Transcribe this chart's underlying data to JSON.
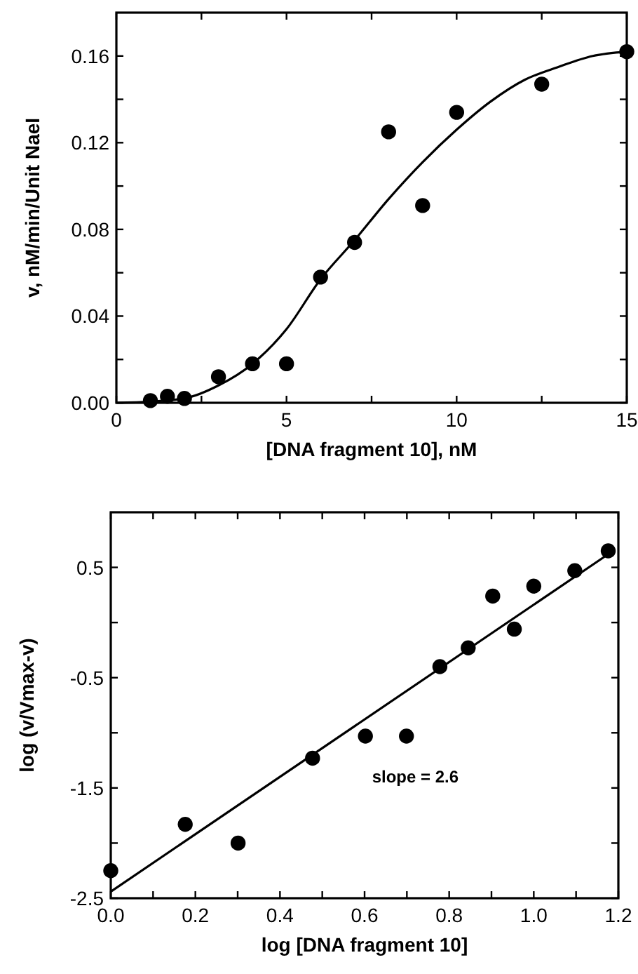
{
  "chart_data": [
    {
      "type": "scatter",
      "xlabel": "[DNA fragment 10], nM",
      "ylabel": "v, nM/min/Unit NaeI",
      "xlim": [
        0,
        15
      ],
      "ylim": [
        0,
        0.18
      ],
      "xticks": [
        0,
        {
          "value": 2.5,
          "label": null
        },
        5,
        {
          "value": 7.5,
          "label": null
        },
        10,
        {
          "value": 12.5,
          "label": null
        },
        15
      ],
      "yticks": [
        {
          "value": 0,
          "label": "0.00"
        },
        {
          "value": 0.02,
          "label": null
        },
        {
          "value": 0.04,
          "label": "0.04"
        },
        {
          "value": 0.06,
          "label": null
        },
        {
          "value": 0.08,
          "label": "0.08"
        },
        {
          "value": 0.1,
          "label": null
        },
        {
          "value": 0.12,
          "label": "0.12"
        },
        {
          "value": 0.14,
          "label": null
        },
        {
          "value": 0.16,
          "label": "0.16"
        }
      ],
      "grid": false,
      "series": [
        {
          "marker": "circle",
          "color": "#000000",
          "x": [
            1,
            1.5,
            2,
            3,
            4,
            5,
            6,
            7,
            8,
            9,
            10,
            12.5,
            15
          ],
          "values": [
            0.001,
            0.003,
            0.002,
            0.012,
            0.018,
            0.018,
            0.058,
            0.074,
            0.125,
            0.091,
            0.134,
            0.147,
            0.162
          ]
        },
        {
          "type": "line",
          "marker": "none",
          "line_style": "solid",
          "color": "#000000",
          "x": [
            0,
            1,
            2,
            3,
            4,
            5,
            6,
            7,
            8,
            9,
            10,
            11,
            12,
            13,
            14,
            15
          ],
          "values": [
            0,
            0.0005,
            0.002,
            0.008,
            0.018,
            0.034,
            0.057,
            0.075,
            0.094,
            0.111,
            0.126,
            0.139,
            0.149,
            0.155,
            0.16,
            0.162
          ]
        }
      ]
    },
    {
      "type": "scatter",
      "xlabel": "log [DNA fragment 10]",
      "ylabel": "log  (v/Vmax-v)",
      "xlim": [
        0,
        1.2
      ],
      "ylim": [
        -2.5,
        1.0
      ],
      "xticks": [
        {
          "value": 0,
          "label": "0.0"
        },
        {
          "value": 0.1,
          "label": null
        },
        0.2,
        {
          "value": 0.3,
          "label": null
        },
        0.4,
        {
          "value": 0.5,
          "label": null
        },
        0.6,
        {
          "value": 0.7,
          "label": null
        },
        0.8,
        {
          "value": 0.9,
          "label": null
        },
        {
          "value": 1.0,
          "label": "1.0"
        },
        {
          "value": 1.1,
          "label": null
        },
        1.2
      ],
      "yticks": [
        -2.5,
        {
          "value": -2,
          "label": null
        },
        -1.5,
        {
          "value": -1,
          "label": null
        },
        -0.5,
        {
          "value": 0,
          "label": null
        },
        0.5
      ],
      "grid": false,
      "annotations": [
        "slope = 2.6"
      ],
      "series": [
        {
          "marker": "circle",
          "color": "#000000",
          "x": [
            0,
            0.176,
            0.301,
            0.477,
            0.602,
            0.699,
            0.778,
            0.845,
            0.903,
            0.954,
            1.0,
            1.097,
            1.176
          ],
          "values": [
            -2.25,
            -1.83,
            -2.0,
            -1.23,
            -1.03,
            -1.03,
            -0.4,
            -0.23,
            0.24,
            -0.06,
            0.33,
            0.47,
            0.65
          ]
        },
        {
          "type": "line",
          "marker": "none",
          "line_style": "solid",
          "color": "#000000",
          "x": [
            0,
            1.176
          ],
          "values": [
            -2.44,
            0.62
          ]
        }
      ]
    }
  ]
}
